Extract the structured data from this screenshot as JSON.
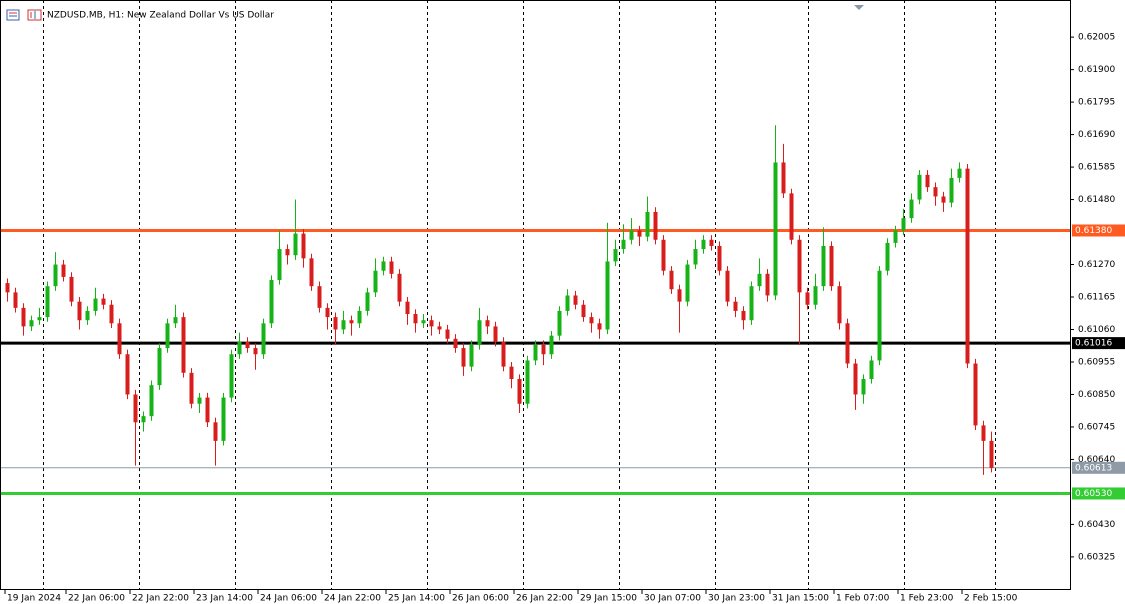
{
  "chart_data": {
    "type": "candlestick",
    "title": "NZDUSD.MB, H1:  New Zealand Dollar Vs US Dollar",
    "up_color": "#16b316",
    "down_color": "#d91c1c",
    "xlim": [
      -0.875,
      132.875
    ],
    "ylim": [
      0.60218,
      0.62125
    ],
    "xgrid": [
      4.5,
      16.5,
      28.5,
      40.5,
      52.5,
      64.5,
      76.5,
      88.5,
      100.125,
      112.125,
      123.5
    ],
    "xticks": [
      {
        "value": -0.25,
        "label": "19 Jan 2024"
      },
      {
        "value": 7.375,
        "label": "22 Jan 06:00"
      },
      {
        "value": 15.375,
        "label": "22 Jan 22:00"
      },
      {
        "value": 23.375,
        "label": "23 Jan 14:00"
      },
      {
        "value": 31.375,
        "label": "24 Jan 06:00"
      },
      {
        "value": 39.375,
        "label": "24 Jan 22:00"
      },
      {
        "value": 47.375,
        "label": "25 Jan 14:00"
      },
      {
        "value": 55.375,
        "label": "26 Jan 06:00"
      },
      {
        "value": 63.375,
        "label": "26 Jan 22:00"
      },
      {
        "value": 71.375,
        "label": "29 Jan 15:00"
      },
      {
        "value": 79.375,
        "label": "30 Jan 07:00"
      },
      {
        "value": 87.375,
        "label": "30 Jan 23:00"
      },
      {
        "value": 95.375,
        "label": "31 Jan 15:00"
      },
      {
        "value": 103.375,
        "label": "1 Feb 07:00"
      },
      {
        "value": 111.375,
        "label": "1 Feb 23:00"
      },
      {
        "value": 119.375,
        "label": "2 Feb 15:00"
      }
    ],
    "yticks": [
      0.62005,
      {
        "value": 0.619,
        "label": "0.61900"
      },
      0.61795,
      {
        "value": 0.6169,
        "label": "0.61690"
      },
      0.61585,
      {
        "value": 0.6148,
        "label": "0.61480"
      },
      {
        "value": 0.6127,
        "label": "0.61270"
      },
      0.61165,
      {
        "value": 0.6106,
        "label": "0.61060"
      },
      0.60955,
      {
        "value": 0.6085,
        "label": "0.60850"
      },
      0.60745,
      {
        "value": 0.6064,
        "label": "0.60640"
      },
      {
        "value": 0.6043,
        "label": "0.60430"
      },
      0.60325
    ],
    "levels": [
      {
        "price": {
          "value": 0.6138,
          "label": "0.61380"
        },
        "color": "#ff5a1f",
        "text_color": "#ffffff",
        "width": 3
      },
      {
        "price": 0.61016,
        "color": "#000000",
        "text_color": "#ffffff",
        "width": 3
      },
      {
        "price": 0.60613,
        "color": "#8e9aa6",
        "text_color": "#ffffff",
        "width": 1
      },
      {
        "price": {
          "value": 0.6053,
          "label": "0.60530"
        },
        "color": "#33cc33",
        "text_color": "#ffffff",
        "width": 3
      }
    ],
    "open": [
      0.6121,
      0.6118,
      0.6113,
      0.6107,
      0.6109,
      0.611,
      0.612,
      0.6127,
      0.6123,
      0.6115,
      0.6109,
      0.6112,
      0.6116,
      0.6114,
      0.6108,
      0.6098,
      0.6085,
      0.6076,
      0.6078,
      0.6088,
      0.61,
      0.6108,
      0.611,
      0.6092,
      0.6082,
      0.6084,
      0.6076,
      0.607,
      0.6084,
      0.6098,
      0.6102,
      0.61,
      0.6098,
      0.6108,
      0.6122,
      0.6132,
      0.613,
      0.6137,
      0.6129,
      0.612,
      0.6113,
      0.611,
      0.6106,
      0.6109,
      0.6108,
      0.6112,
      0.6118,
      0.6125,
      0.6128,
      0.6124,
      0.6115,
      0.6111,
      0.6108,
      0.6109,
      0.6107,
      0.6106,
      0.6103,
      0.61,
      0.6094,
      0.6101,
      0.6109,
      0.6107,
      0.6102,
      0.6094,
      0.609,
      0.6082,
      0.6096,
      0.6101,
      0.6098,
      0.6104,
      0.6112,
      0.6117,
      0.6114,
      0.611,
      0.6108,
      0.6106,
      0.6128,
      0.6132,
      0.6135,
      0.6138,
      0.6136,
      0.6144,
      0.6135,
      0.6125,
      0.6119,
      0.6115,
      0.6127,
      0.6132,
      0.6135,
      0.6133,
      0.6125,
      0.6115,
      0.6112,
      0.6109,
      0.612,
      0.6124,
      0.6117,
      0.616,
      0.615,
      0.6135,
      0.6118,
      0.6114,
      0.612,
      0.6133,
      0.612,
      0.6108,
      0.6095,
      0.6085,
      0.609,
      0.6096,
      0.6125,
      0.6134,
      0.6138,
      0.6142,
      0.6148,
      0.6156,
      0.6152,
      0.6149,
      0.6147,
      0.6155,
      0.6158,
      0.6095,
      0.6075,
      0.607
    ],
    "high": [
      0.61225,
      0.61195,
      0.61145,
      0.61105,
      0.6113,
      0.61215,
      0.6131,
      0.61285,
      0.61245,
      0.61165,
      0.61135,
      0.61195,
      0.61175,
      0.61155,
      0.61095,
      0.60995,
      0.60865,
      0.60795,
      0.60895,
      0.61015,
      0.61095,
      0.6114,
      0.61115,
      0.60935,
      0.60855,
      0.60855,
      0.60775,
      0.60855,
      0.60995,
      0.6105,
      0.61035,
      0.61015,
      0.61095,
      0.61235,
      0.6138,
      0.61335,
      0.6148,
      0.61385,
      0.61305,
      0.61215,
      0.61145,
      0.61115,
      0.6112,
      0.61105,
      0.61135,
      0.61195,
      0.6129,
      0.61295,
      0.61295,
      0.61255,
      0.61165,
      0.61125,
      0.6111,
      0.61105,
      0.61085,
      0.61075,
      0.61045,
      0.61015,
      0.61025,
      0.6113,
      0.61105,
      0.61085,
      0.61035,
      0.60955,
      0.60915,
      0.60975,
      0.61025,
      0.61025,
      0.61055,
      0.61135,
      0.6119,
      0.61185,
      0.61155,
      0.61115,
      0.61095,
      0.61405,
      0.6135,
      0.614,
      0.6142,
      0.61395,
      0.6149,
      0.61455,
      0.61365,
      0.61265,
      0.61205,
      0.61285,
      0.6135,
      0.61365,
      0.61365,
      0.61345,
      0.61265,
      0.61165,
      0.61135,
      0.61215,
      0.6129,
      0.61255,
      0.6172,
      0.6166,
      0.61515,
      0.61365,
      0.61195,
      0.6124,
      0.6139,
      0.61345,
      0.61215,
      0.61095,
      0.60965,
      0.60915,
      0.60975,
      0.61265,
      0.61355,
      0.61395,
      0.6145,
      0.615,
      0.61575,
      0.61575,
      0.61535,
      0.61505,
      0.6158,
      0.616,
      0.61595,
      0.60965,
      0.60765,
      0.6073
    ],
    "low": [
      0.6115,
      0.61115,
      0.6104,
      0.61055,
      0.61075,
      0.61085,
      0.61185,
      0.61215,
      0.61135,
      0.6106,
      0.61075,
      0.61105,
      0.61125,
      0.61065,
      0.60965,
      0.60835,
      0.6062,
      0.6073,
      0.60765,
      0.60865,
      0.60985,
      0.61065,
      0.60905,
      0.60805,
      0.6079,
      0.60745,
      0.6062,
      0.60685,
      0.60825,
      0.60965,
      0.60985,
      0.6093,
      0.60965,
      0.61065,
      0.61205,
      0.6127,
      0.61285,
      0.6126,
      0.61185,
      0.61115,
      0.6106,
      0.6101,
      0.61045,
      0.6104,
      0.61065,
      0.61105,
      0.61165,
      0.61235,
      0.61225,
      0.61135,
      0.61075,
      0.6105,
      0.61065,
      0.6104,
      0.61045,
      0.61015,
      0.60985,
      0.6091,
      0.60925,
      0.60995,
      0.61045,
      0.61005,
      0.60925,
      0.6087,
      0.6079,
      0.60805,
      0.60945,
      0.60945,
      0.60965,
      0.61025,
      0.61105,
      0.61125,
      0.61085,
      0.6105,
      0.6103,
      0.61045,
      0.61265,
      0.61305,
      0.61335,
      0.6133,
      0.61345,
      0.61335,
      0.61235,
      0.61175,
      0.6105,
      0.61135,
      0.61255,
      0.61305,
      0.61315,
      0.61235,
      0.61135,
      0.611,
      0.6106,
      0.61075,
      0.61185,
      0.6115,
      0.61155,
      0.61485,
      0.61335,
      0.6101,
      0.61125,
      0.61125,
      0.61185,
      0.61185,
      0.6106,
      0.60935,
      0.608,
      0.6082,
      0.60885,
      0.60945,
      0.61235,
      0.61325,
      0.61365,
      0.61405,
      0.61465,
      0.61505,
      0.6146,
      0.6144,
      0.61455,
      0.61535,
      0.60935,
      0.60735,
      0.6059,
      0.60598
    ],
    "close": [
      0.6118,
      0.6113,
      0.6107,
      0.6109,
      0.611,
      0.612,
      0.6127,
      0.6123,
      0.6115,
      0.6109,
      0.6112,
      0.6116,
      0.6114,
      0.6108,
      0.6098,
      0.6085,
      0.6076,
      0.6078,
      0.6088,
      0.61,
      0.6108,
      0.611,
      0.6092,
      0.6082,
      0.6084,
      0.6076,
      0.607,
      0.6084,
      0.6098,
      0.6102,
      0.61,
      0.6098,
      0.6108,
      0.6122,
      0.6132,
      0.613,
      0.6137,
      0.6129,
      0.612,
      0.6113,
      0.611,
      0.6106,
      0.6109,
      0.6108,
      0.6112,
      0.6118,
      0.6125,
      0.6128,
      0.6124,
      0.6115,
      0.6111,
      0.6108,
      0.6109,
      0.6107,
      0.6106,
      0.6103,
      0.61,
      0.6094,
      0.6101,
      0.6109,
      0.6107,
      0.6102,
      0.6094,
      0.609,
      0.6082,
      0.6096,
      0.6101,
      0.6098,
      0.6104,
      0.6112,
      0.6117,
      0.6114,
      0.611,
      0.6108,
      0.6106,
      0.6128,
      0.6132,
      0.6135,
      0.6138,
      0.6136,
      0.6144,
      0.6135,
      0.6125,
      0.6119,
      0.6115,
      0.6127,
      0.6132,
      0.6135,
      0.6133,
      0.6125,
      0.6115,
      0.6112,
      0.6109,
      0.612,
      0.6124,
      0.6117,
      0.616,
      0.615,
      0.6135,
      0.6118,
      0.6114,
      0.612,
      0.6133,
      0.612,
      0.6108,
      0.6095,
      0.6085,
      0.609,
      0.6096,
      0.6125,
      0.6134,
      0.6138,
      0.6142,
      0.6148,
      0.6156,
      0.6152,
      0.6149,
      0.6147,
      0.6155,
      0.6158,
      0.6095,
      0.6075,
      0.607,
      0.60613
    ]
  }
}
